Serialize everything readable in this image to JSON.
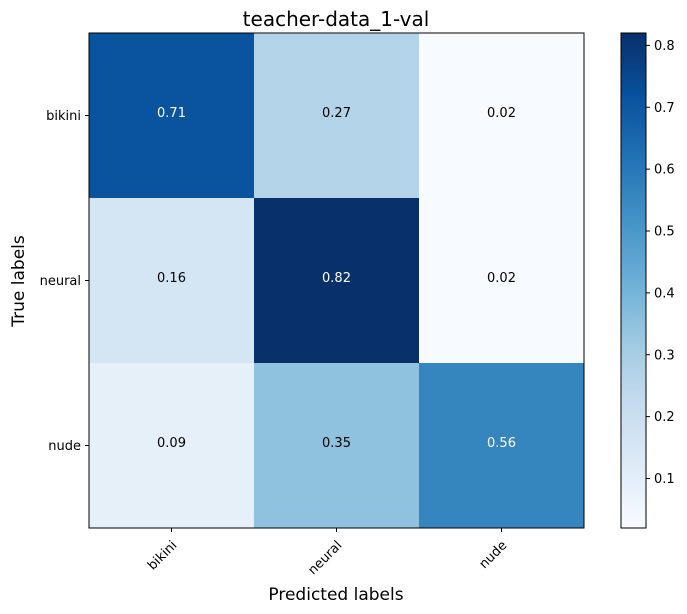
{
  "chart_data": {
    "type": "heatmap",
    "title": "teacher-data_1-val",
    "xlabel": "Predicted labels",
    "ylabel": "True labels",
    "x_categories": [
      "bikini",
      "neural",
      "nude"
    ],
    "y_categories": [
      "bikini",
      "neural",
      "nude"
    ],
    "values": [
      [
        0.71,
        0.27,
        0.02
      ],
      [
        0.16,
        0.82,
        0.02
      ],
      [
        0.09,
        0.35,
        0.56
      ]
    ],
    "colormap": "Blues",
    "colorbar": {
      "range": [
        0.02,
        0.82
      ],
      "ticks": [
        0.1,
        0.2,
        0.3,
        0.4,
        0.5,
        0.6,
        0.7,
        0.8
      ],
      "tick_labels": [
        "0.1",
        "0.2",
        "0.3",
        "0.4",
        "0.5",
        "0.6",
        "0.7",
        "0.8"
      ]
    },
    "x_tick_rotation": 45,
    "grid": false
  }
}
